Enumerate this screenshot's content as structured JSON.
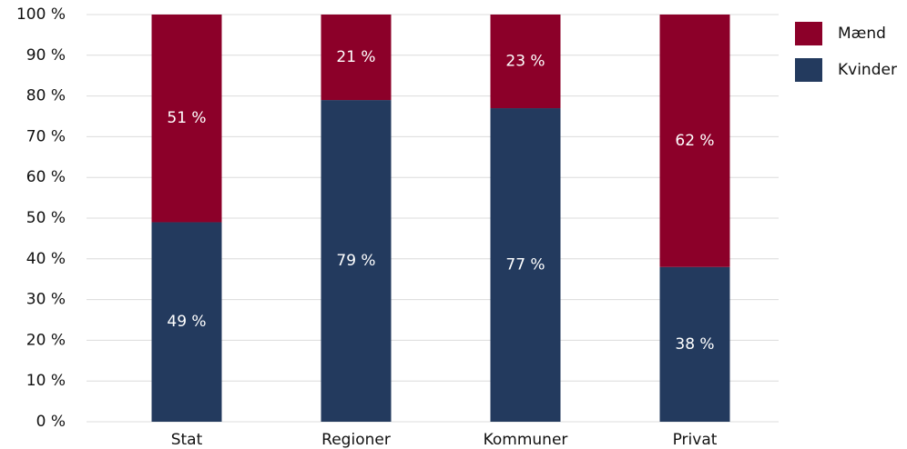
{
  "chart_data": {
    "type": "stacked_bar",
    "categories": [
      "Stat",
      "Regioner",
      "Kommuner",
      "Privat"
    ],
    "series": [
      {
        "name": "Mænd",
        "color": "#8c0029",
        "values": [
          51,
          21,
          23,
          62
        ],
        "value_labels": [
          "51 %",
          "21 %",
          "23 %",
          "62 %"
        ]
      },
      {
        "name": "Kvinder",
        "color": "#233a5e",
        "values": [
          49,
          79,
          77,
          38
        ],
        "value_labels": [
          "49 %",
          "79 %",
          "77 %",
          "38 %"
        ]
      }
    ],
    "ylim": [
      0,
      100
    ],
    "yticks": [
      {
        "value": 0,
        "label": "0 %"
      },
      {
        "value": 10,
        "label": "10 %"
      },
      {
        "value": 20,
        "label": "20 %"
      },
      {
        "value": 30,
        "label": "30 %"
      },
      {
        "value": 40,
        "label": "40 %"
      },
      {
        "value": 50,
        "label": "50 %"
      },
      {
        "value": 60,
        "label": "60 %"
      },
      {
        "value": 70,
        "label": "70 %"
      },
      {
        "value": 80,
        "label": "80 %"
      },
      {
        "value": 90,
        "label": "90 %"
      },
      {
        "value": 100,
        "label": "100 %"
      }
    ],
    "grid": true,
    "legend": "top-right"
  }
}
